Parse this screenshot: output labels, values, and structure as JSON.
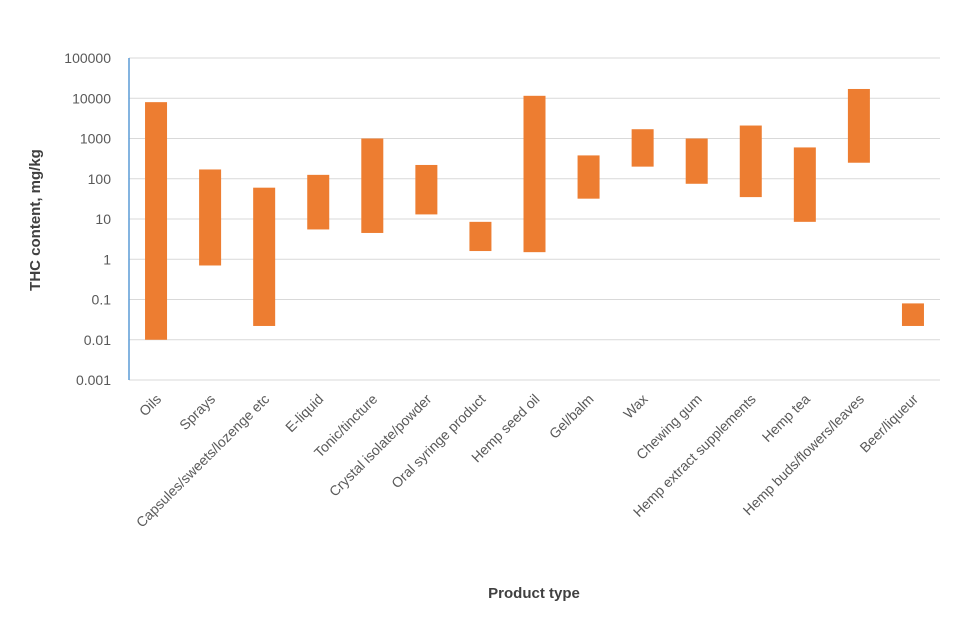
{
  "chart_data": {
    "type": "bar",
    "subtype": "floating-range",
    "title": "",
    "xlabel": "Product type",
    "ylabel": "THC content, mg/kg",
    "yscale": "log",
    "ylim": [
      0.001,
      100000
    ],
    "yticks": [
      {
        "value": 0.001,
        "label": "0.001"
      },
      {
        "value": 0.01,
        "label": "0.01"
      },
      {
        "value": 0.1,
        "label": "0.1"
      },
      {
        "value": 1,
        "label": "1"
      },
      {
        "value": 10,
        "label": "10"
      },
      {
        "value": 100,
        "label": "100"
      },
      {
        "value": 1000,
        "label": "1000"
      },
      {
        "value": 10000,
        "label": "10000"
      },
      {
        "value": 100000,
        "label": "100000"
      }
    ],
    "grid": true,
    "bar_color": "#ED7D31",
    "categories": [
      "Oils",
      "Sprays",
      "Capsules/sweets/lozenge etc",
      "E-liquid",
      "Tonic/tincture",
      "Crystal isolate/powder",
      "Oral syringe product",
      "Hemp seed oil",
      "Gel/balm",
      "Wax",
      "Chewing gum",
      "Hemp extract supplements",
      "Hemp tea",
      "Hemp buds/flowers/leaves",
      "Beer/liqueur"
    ],
    "ranges": [
      {
        "min": 0.01,
        "max": 8000
      },
      {
        "min": 0.7,
        "max": 170
      },
      {
        "min": 0.022,
        "max": 60
      },
      {
        "min": 5.5,
        "max": 125
      },
      {
        "min": 4.5,
        "max": 1000
      },
      {
        "min": 13,
        "max": 220
      },
      {
        "min": 1.6,
        "max": 8.5
      },
      {
        "min": 1.5,
        "max": 11500
      },
      {
        "min": 32,
        "max": 380
      },
      {
        "min": 200,
        "max": 1700
      },
      {
        "min": 75,
        "max": 1000
      },
      {
        "min": 35,
        "max": 2100
      },
      {
        "min": 8.5,
        "max": 600
      },
      {
        "min": 250,
        "max": 17000
      },
      {
        "min": 0.022,
        "max": 0.08
      }
    ]
  }
}
